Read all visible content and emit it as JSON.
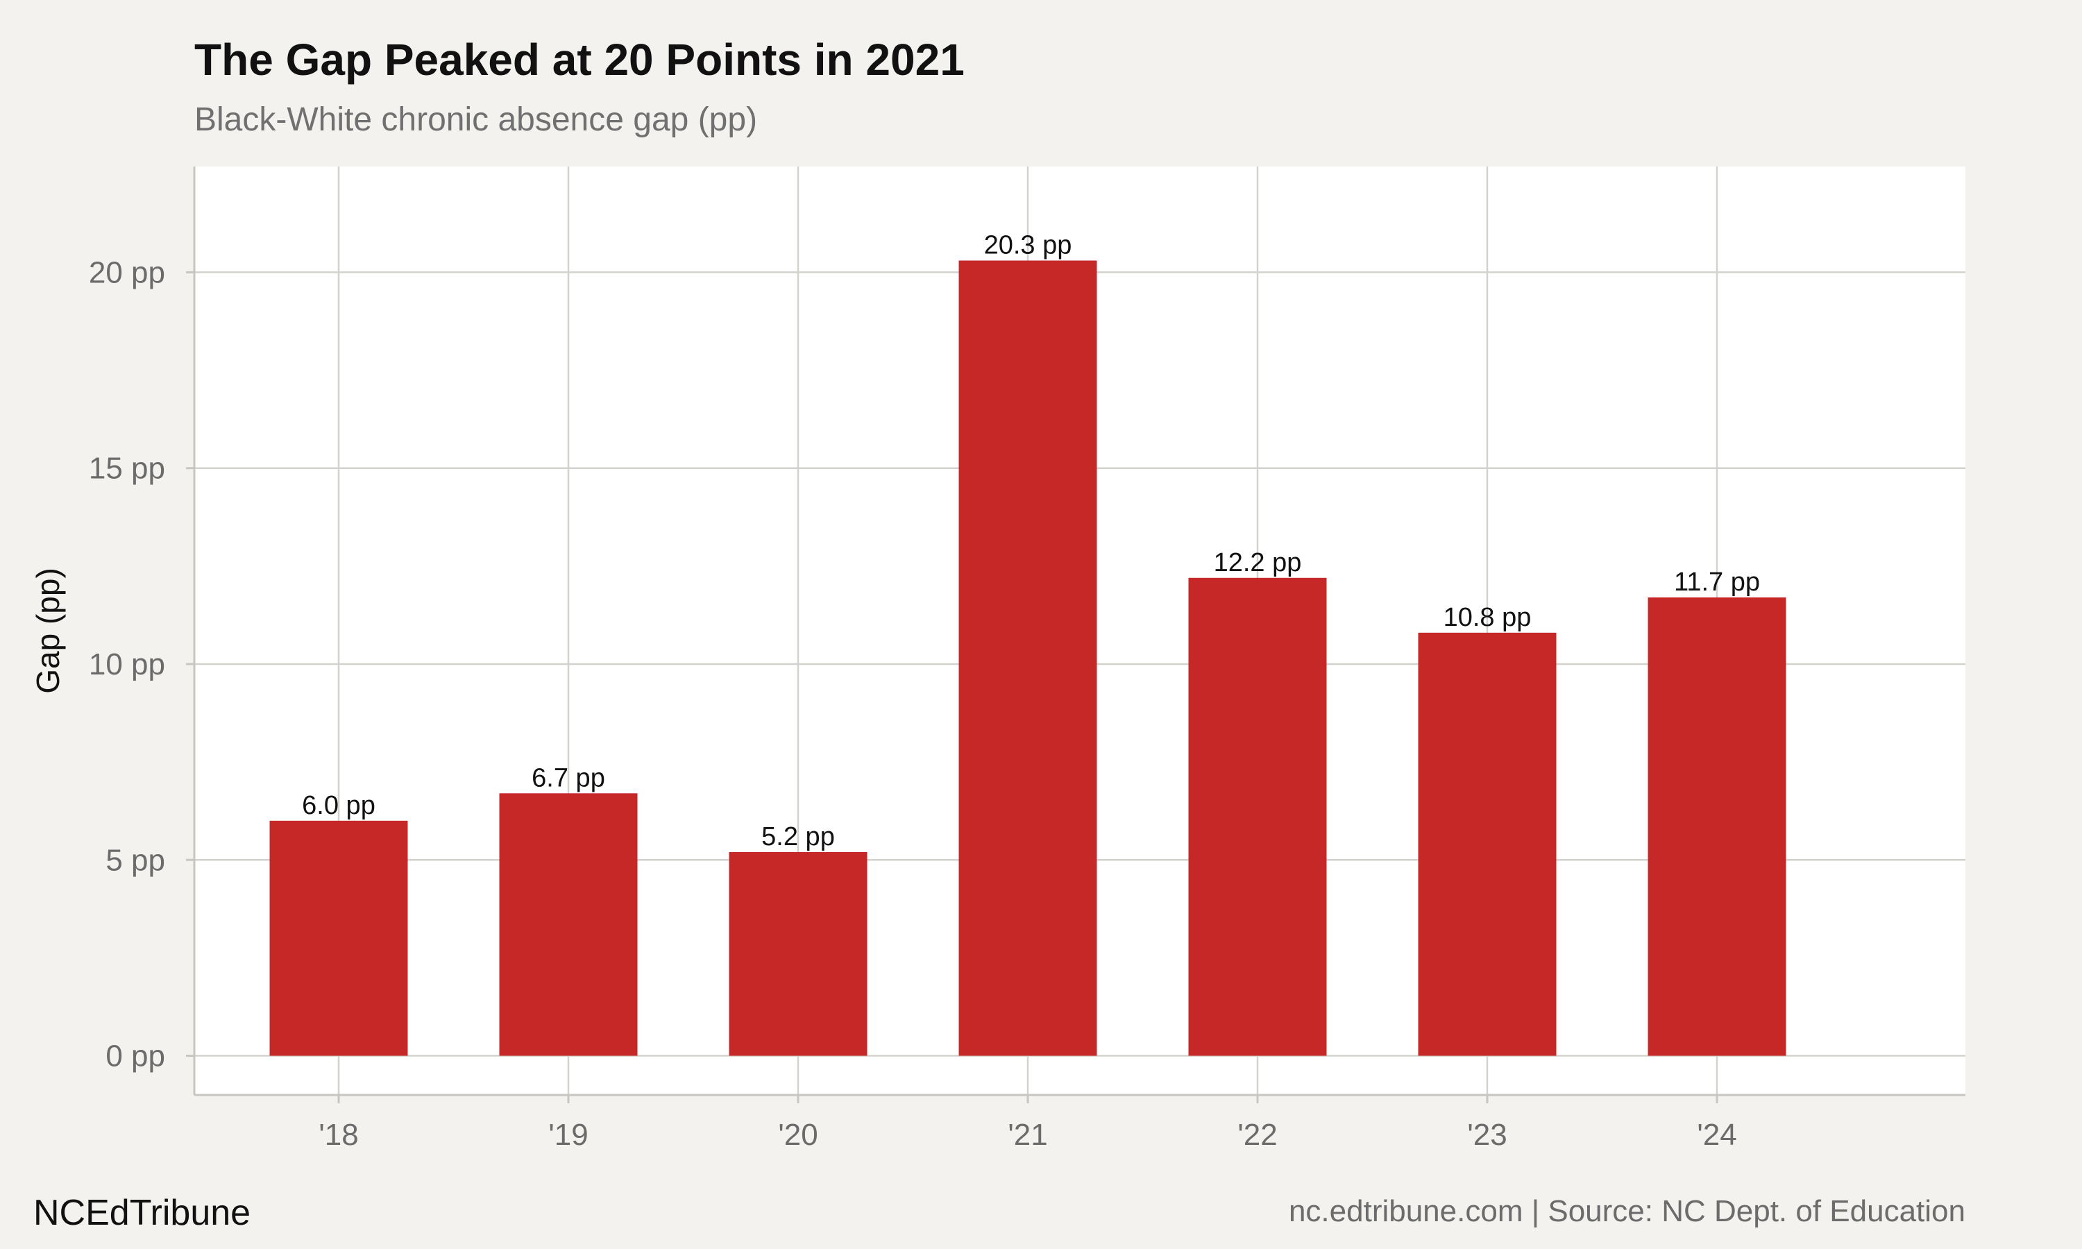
{
  "chart_data": {
    "type": "bar",
    "title": "The Gap Peaked at 20 Points in 2021",
    "subtitle": "Black-White chronic absence gap (pp)",
    "xlabel": "",
    "ylabel": "Gap (pp)",
    "categories": [
      "'18",
      "'19",
      "'20",
      "'21",
      "'22",
      "'23",
      "'24"
    ],
    "values": [
      6.0,
      6.7,
      5.2,
      20.3,
      12.2,
      10.8,
      11.7
    ],
    "data_labels": [
      "6.0 pp",
      "6.7 pp",
      "5.2 pp",
      "20.3 pp",
      "12.2 pp",
      "10.8 pp",
      "11.7 pp"
    ],
    "y_ticks": [
      0,
      5,
      10,
      15,
      20
    ],
    "y_tick_labels": [
      "0 pp",
      "5 pp",
      "10 pp",
      "15 pp",
      "20 pp"
    ],
    "ylim": [
      -1,
      22.7
    ],
    "grid": true,
    "legend": "none",
    "colors": {
      "bar": "#c62828",
      "panel": "#ffffff",
      "background": "#f4f2ee",
      "grid": "#d4d2cc",
      "axis": "#c8c6c0"
    }
  },
  "footer": {
    "brand": "NCEdTribune",
    "source": "nc.edtribune.com | Source: NC Dept. of Education"
  }
}
